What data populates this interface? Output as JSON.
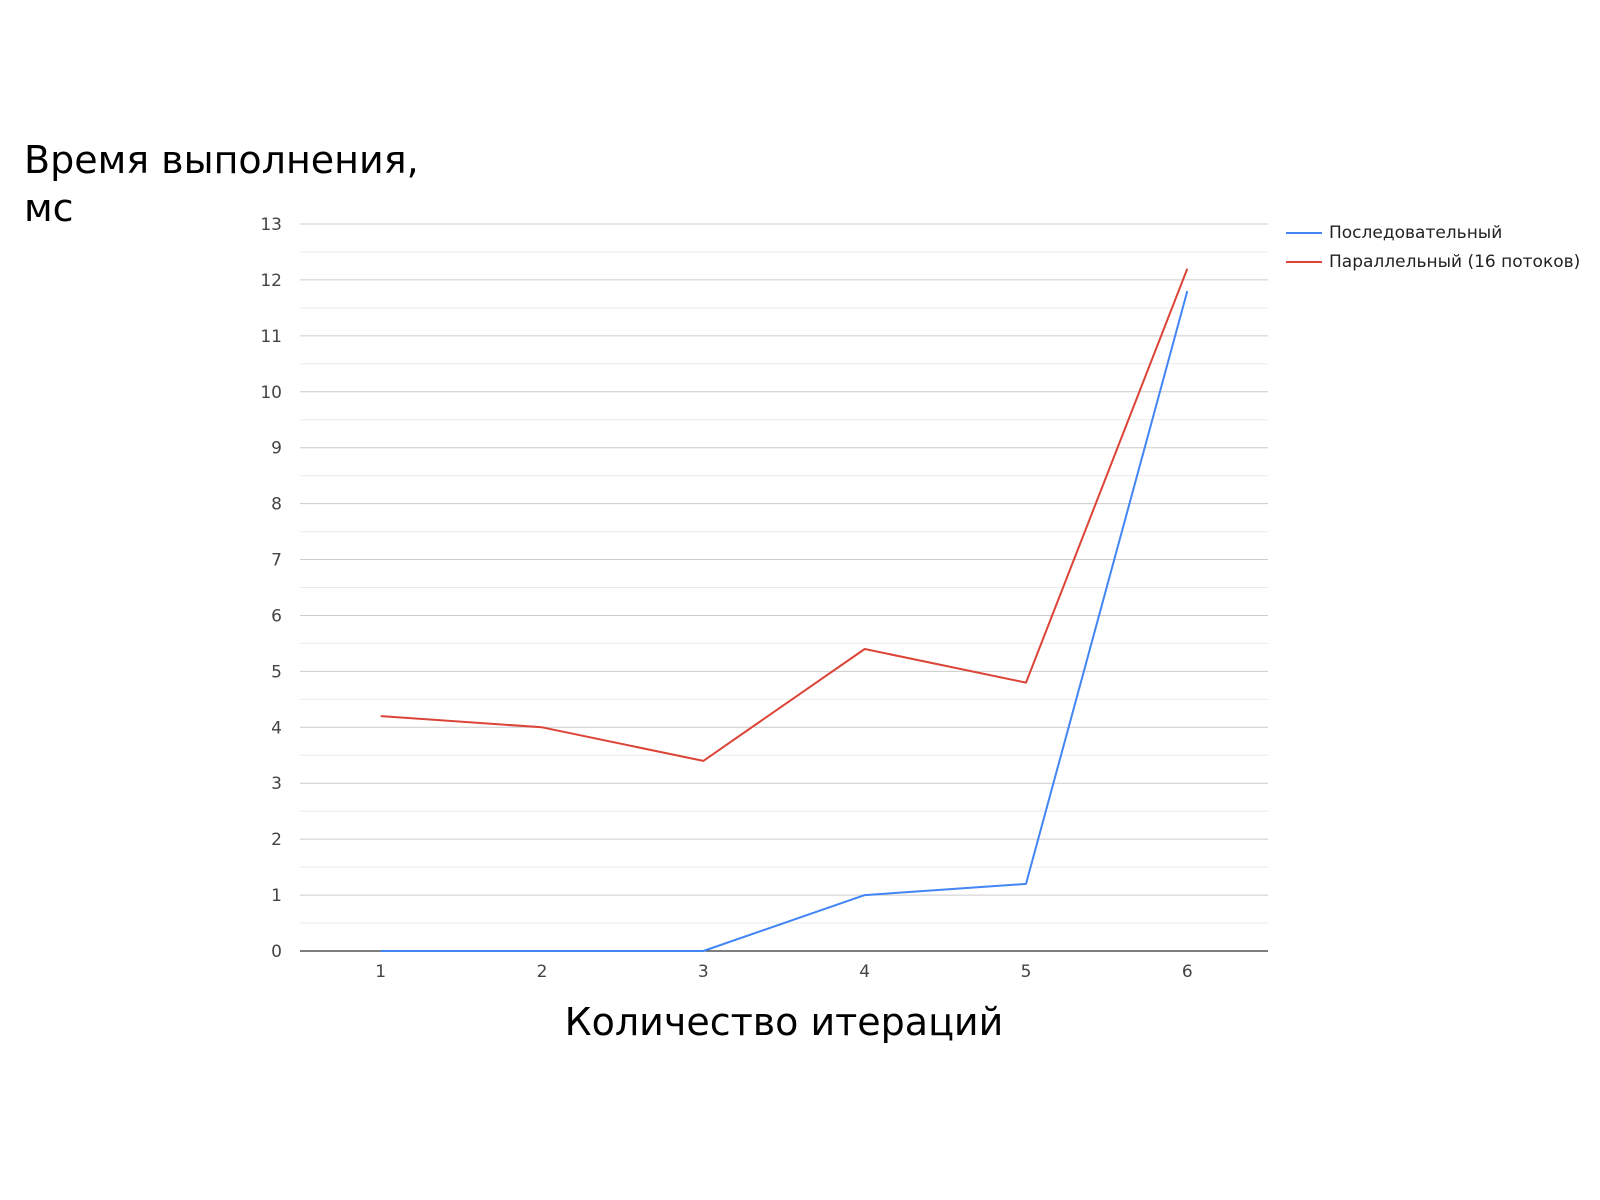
{
  "chart_data": {
    "type": "line",
    "xlabel": "Количество итераций",
    "ylabel": "Время выполнения, мс",
    "categories": [
      "1",
      "2",
      "3",
      "4",
      "5",
      "6"
    ],
    "ylim": [
      0,
      13
    ],
    "yticks": [
      0,
      1,
      2,
      3,
      4,
      5,
      6,
      7,
      8,
      9,
      10,
      11,
      12,
      13
    ],
    "grid": true,
    "legend_position": "right",
    "series": [
      {
        "name": "Последовательный",
        "color": "#4285f4",
        "values": [
          0,
          0,
          0,
          1,
          1.2,
          11.8
        ]
      },
      {
        "name": "Параллельный (16 потоков)",
        "color": "#db4437",
        "values": [
          4.2,
          4,
          3.4,
          5.4,
          4.8,
          12.2
        ]
      }
    ]
  }
}
